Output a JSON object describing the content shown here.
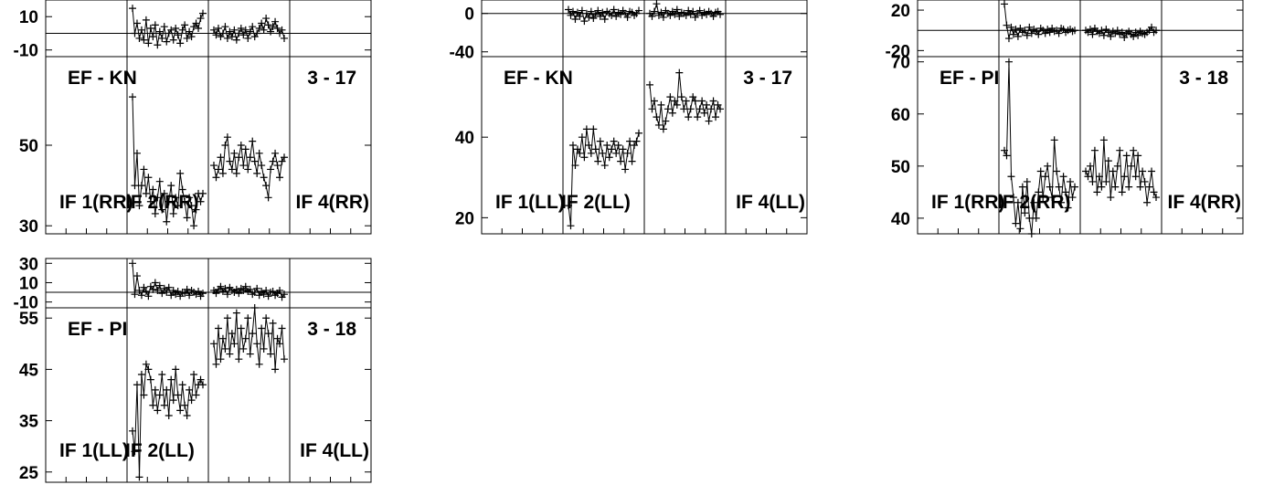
{
  "chart_data": [
    {
      "type": "line",
      "baseline": "EF - KN",
      "scan": "3 - 17",
      "polarization": "RR",
      "if_labels": [
        "IF 1(RR)",
        "IF 2(RR)",
        "IF 4(RR)"
      ],
      "phase_axis": {
        "ylim": [
          -14,
          20
        ],
        "tick_labels": [
          "10",
          "-10"
        ],
        "ticks": [
          10,
          -10
        ],
        "reference": 0
      },
      "amp_axis": {
        "ylim": [
          28,
          72
        ],
        "tick_labels": [
          "50",
          "30"
        ],
        "ticks": [
          50,
          30
        ]
      },
      "phase": {
        "IF 1": [],
        "IF 2": [
          15,
          0,
          6,
          -3,
          2,
          -4,
          8,
          -6,
          3,
          -2,
          5,
          -7,
          1,
          -3,
          4,
          -5,
          0,
          2,
          -4,
          3,
          -1,
          -6,
          2,
          5,
          -3,
          1,
          -2,
          4,
          6,
          3,
          9,
          12
        ],
        "IF 3": [
          2,
          -1,
          3,
          -2,
          0,
          4,
          -3,
          1,
          -2,
          2,
          -4,
          0,
          3,
          -1,
          2,
          -3,
          1,
          4,
          -2,
          0,
          3,
          6,
          2,
          9,
          5,
          1,
          4,
          7,
          3,
          0,
          2,
          -3
        ],
        "IF 4": []
      },
      "amplitude": {
        "IF 1": [],
        "IF 2": [
          62,
          40,
          48,
          35,
          40,
          44,
          38,
          42,
          36,
          39,
          33,
          37,
          41,
          34,
          38,
          31,
          36,
          40,
          33,
          37,
          35,
          43,
          39,
          36,
          32,
          37,
          35,
          30,
          34,
          38,
          36,
          38
        ],
        "IF 3": [
          45,
          42,
          44,
          47,
          43,
          50,
          52,
          46,
          44,
          48,
          43,
          47,
          50,
          45,
          49,
          44,
          47,
          51,
          46,
          43,
          48,
          45,
          42,
          40,
          37,
          44,
          46,
          48,
          45,
          42,
          46,
          47
        ],
        "IF 4": []
      }
    },
    {
      "type": "line",
      "baseline": "EF - KN",
      "scan": "3 - 17",
      "polarization": "LL",
      "if_labels": [
        "IF 1(LL)",
        "IF 2(LL)",
        "IF 4(LL)"
      ],
      "phase_axis": {
        "ylim": [
          -45,
          14
        ],
        "tick_labels": [
          "0",
          "-40"
        ],
        "ticks": [
          0,
          -40
        ],
        "reference": 0
      },
      "amp_axis": {
        "ylim": [
          16,
          60
        ],
        "tick_labels": [
          "40",
          "20"
        ],
        "ticks": [
          40,
          20
        ]
      },
      "phase": {
        "IF 1": [],
        "IF 2": [
          4,
          -2,
          2,
          -6,
          1,
          -3,
          3,
          -8,
          0,
          -4,
          2,
          -5,
          -1,
          3,
          -3,
          1,
          -6,
          2,
          0,
          -2,
          4,
          -3,
          1,
          -1,
          3,
          0,
          -4,
          2,
          1,
          -2,
          0,
          3
        ],
        "IF 3": [
          0,
          -3,
          2,
          10,
          -2,
          1,
          -4,
          3,
          0,
          -2,
          2,
          -1,
          4,
          -3,
          1,
          0,
          -2,
          3,
          -1,
          2,
          -4,
          0,
          3,
          -2,
          1,
          -1,
          2,
          0,
          -3,
          1,
          2,
          -1
        ],
        "IF 4": []
      },
      "amplitude": {
        "IF 1": [],
        "IF 2": [
          23,
          18,
          38,
          33,
          37,
          36,
          40,
          35,
          42,
          38,
          36,
          42,
          37,
          34,
          39,
          36,
          33,
          38,
          35,
          37,
          39,
          36,
          38,
          34,
          37,
          32,
          36,
          39,
          34,
          38,
          39,
          41
        ],
        "IF 3": [
          53,
          47,
          49,
          45,
          43,
          48,
          42,
          44,
          47,
          50,
          46,
          49,
          48,
          56,
          50,
          47,
          49,
          45,
          47,
          50,
          49,
          45,
          47,
          49,
          46,
          48,
          44,
          47,
          49,
          45,
          48,
          47
        ],
        "IF 4": []
      }
    },
    {
      "type": "line",
      "baseline": "EF - PI",
      "scan": "3 - 18",
      "polarization": "RR",
      "if_labels": [
        "IF 1(RR)",
        "IF 2(RR)",
        "IF 4(RR)"
      ],
      "phase_axis": {
        "ylim": [
          -26,
          30
        ],
        "tick_labels": [
          "20",
          "-20"
        ],
        "ticks": [
          20,
          -20
        ],
        "reference": 0
      },
      "amp_axis": {
        "ylim": [
          37,
          71
        ],
        "tick_labels": [
          "70",
          "60",
          "50",
          "40"
        ],
        "ticks": [
          70,
          60,
          50,
          40
        ]
      },
      "phase": {
        "IF 1": [],
        "IF 2": [
          26,
          5,
          -8,
          3,
          -4,
          1,
          -6,
          2,
          -2,
          0,
          -5,
          3,
          -3,
          1,
          -1,
          -4,
          2,
          0,
          -3,
          1,
          -2,
          2,
          -1,
          0,
          -3,
          2,
          1,
          -2,
          0,
          1,
          -1,
          0
        ],
        "IF 3": [
          0,
          -2,
          1,
          -4,
          2,
          -1,
          -3,
          0,
          -5,
          1,
          -2,
          -6,
          -1,
          -3,
          0,
          -4,
          -2,
          -7,
          -3,
          -1,
          -4,
          -6,
          -2,
          -5,
          -1,
          -3,
          -4,
          -2,
          0,
          3,
          -2,
          0
        ],
        "IF 4": []
      },
      "amplitude": {
        "IF 1": [],
        "IF 2": [
          53,
          52,
          70,
          48,
          44,
          39,
          43,
          38,
          46,
          41,
          47,
          40,
          37,
          43,
          40,
          45,
          49,
          44,
          48,
          50,
          46,
          44,
          55,
          49,
          46,
          43,
          48,
          45,
          42,
          47,
          44,
          46
        ],
        "IF 3": [
          49,
          48,
          50,
          47,
          53,
          45,
          48,
          46,
          55,
          47,
          51,
          44,
          49,
          46,
          50,
          53,
          45,
          48,
          52,
          46,
          50,
          53,
          48,
          52,
          46,
          49,
          47,
          43,
          46,
          49,
          45,
          44
        ],
        "IF 4": []
      }
    },
    {
      "type": "line",
      "baseline": "EF - PI",
      "scan": "3 - 18",
      "polarization": "LL",
      "if_labels": [
        "IF 1(LL)",
        "IF 2(LL)",
        "IF 4(LL)"
      ],
      "phase_axis": {
        "ylim": [
          -16,
          35
        ],
        "tick_labels": [
          "30",
          "10",
          "-10"
        ],
        "ticks": [
          30,
          10,
          -10
        ],
        "reference": 0
      },
      "amp_axis": {
        "ylim": [
          23,
          57
        ],
        "tick_labels": [
          "55",
          "45",
          "35",
          "25"
        ],
        "ticks": [
          55,
          45,
          35,
          25
        ]
      },
      "phase": {
        "IF 1": [],
        "IF 2": [
          30,
          -2,
          17,
          2,
          -3,
          5,
          1,
          -4,
          6,
          3,
          10,
          2,
          7,
          -1,
          4,
          0,
          5,
          -3,
          2,
          -2,
          1,
          -4,
          0,
          -1,
          3,
          -3,
          2,
          0,
          -2,
          1,
          -4,
          -1
        ],
        "IF 3": [
          2,
          -1,
          3,
          6,
          1,
          4,
          -2,
          5,
          2,
          0,
          3,
          -1,
          4,
          2,
          6,
          1,
          3,
          -2,
          0,
          4,
          -3,
          1,
          -2,
          2,
          -4,
          0,
          1,
          -3,
          -1,
          2,
          -5,
          -2
        ],
        "IF 4": []
      },
      "amplitude": {
        "IF 1": [],
        "IF 2": [
          33,
          29,
          42,
          24,
          44,
          40,
          46,
          45,
          43,
          38,
          41,
          37,
          40,
          44,
          38,
          41,
          36,
          43,
          39,
          45,
          40,
          37,
          42,
          38,
          36,
          41,
          39,
          44,
          40,
          42,
          43,
          42
        ],
        "IF 3": [
          50,
          46,
          53,
          47,
          51,
          49,
          55,
          48,
          52,
          50,
          56,
          47,
          53,
          49,
          51,
          55,
          48,
          52,
          57,
          50,
          46,
          53,
          49,
          55,
          52,
          48,
          54,
          45,
          51,
          50,
          53,
          47
        ],
        "IF 4": []
      }
    }
  ]
}
